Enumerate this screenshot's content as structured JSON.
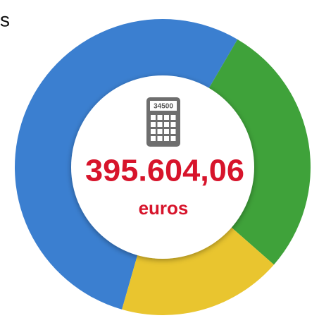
{
  "chart_data": {
    "type": "pie",
    "annotation": "s",
    "icon_label": "34500",
    "center_label": "395.604,06",
    "center_sublabel": "euros",
    "values": [
      54,
      28,
      18
    ],
    "colors": [
      "#3b7fd0",
      "#3fa23a",
      "#e9c52f"
    ]
  }
}
